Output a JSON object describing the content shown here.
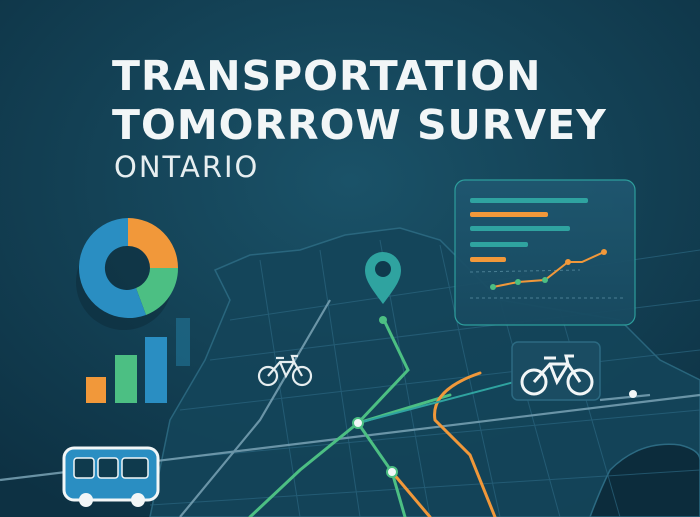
{
  "title_line1": "TRANSPORTATION",
  "title_line2": "TOMORROW SURVEY",
  "subtitle": "ONTARIO",
  "icons": {
    "location_pin": "location-pin-icon",
    "bicycle": "bicycle-icon",
    "bus": "bus-icon",
    "donut_chart": "donut-chart-icon",
    "bar_chart": "bar-chart-icon",
    "dashboard": "dashboard-panel-icon"
  },
  "colors": {
    "background": "#0f3a4d",
    "teal": "#2fa3a0",
    "orange": "#f1983a",
    "green": "#4cbf83",
    "blue": "#2a8ec2",
    "title": "#f2f6f7"
  }
}
